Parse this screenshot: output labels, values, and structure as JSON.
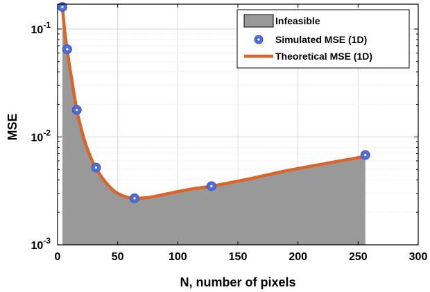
{
  "chart_data": {
    "type": "line",
    "xlabel": "N, number of pixels",
    "ylabel": "MSE",
    "xlim": [
      0,
      300
    ],
    "ylim": [
      0.001,
      0.17
    ],
    "yscale": "log",
    "grid": true,
    "legend_position": "top-right",
    "x_ticks": [
      "0",
      "50",
      "100",
      "150",
      "200",
      "250",
      "300"
    ],
    "y_ticks": [
      {
        "base": "10",
        "exp": "-3",
        "value": 0.001
      },
      {
        "base": "10",
        "exp": "-2",
        "value": 0.01
      },
      {
        "base": "10",
        "exp": "-1",
        "value": 0.1
      }
    ],
    "series": [
      {
        "name": "Infeasible",
        "kind": "area",
        "color": "#999999",
        "x": [
          4,
          6,
          8,
          10,
          12,
          16,
          20,
          24,
          28,
          32,
          40,
          48,
          56,
          64,
          72,
          80,
          96,
          112,
          128,
          160,
          192,
          224,
          256
        ],
        "y": [
          0.16,
          0.095,
          0.064,
          0.045,
          0.033,
          0.0178,
          0.0115,
          0.0082,
          0.0063,
          0.0051,
          0.0038,
          0.0031,
          0.0028,
          0.0027,
          0.00272,
          0.0028,
          0.00305,
          0.0033,
          0.0035,
          0.0041,
          0.0049,
          0.0057,
          0.0066
        ]
      },
      {
        "name": "Simulated MSE (1D)",
        "kind": "scatter",
        "color": "#4f6cd9",
        "x": [
          4,
          8,
          16,
          32,
          64,
          128,
          256
        ],
        "y": [
          0.16,
          0.065,
          0.0178,
          0.0052,
          0.0027,
          0.0035,
          0.0068
        ]
      },
      {
        "name": "Theoretical MSE (1D)",
        "kind": "line",
        "color": "#d9652b",
        "x": [
          4,
          6,
          8,
          10,
          12,
          16,
          20,
          24,
          28,
          32,
          40,
          48,
          56,
          64,
          72,
          80,
          96,
          112,
          128,
          160,
          192,
          224,
          256
        ],
        "y": [
          0.16,
          0.095,
          0.064,
          0.045,
          0.033,
          0.0178,
          0.0115,
          0.0082,
          0.0063,
          0.0051,
          0.0038,
          0.0031,
          0.0028,
          0.0027,
          0.00272,
          0.0028,
          0.00305,
          0.0033,
          0.0035,
          0.0041,
          0.0049,
          0.0057,
          0.0066
        ]
      }
    ]
  }
}
